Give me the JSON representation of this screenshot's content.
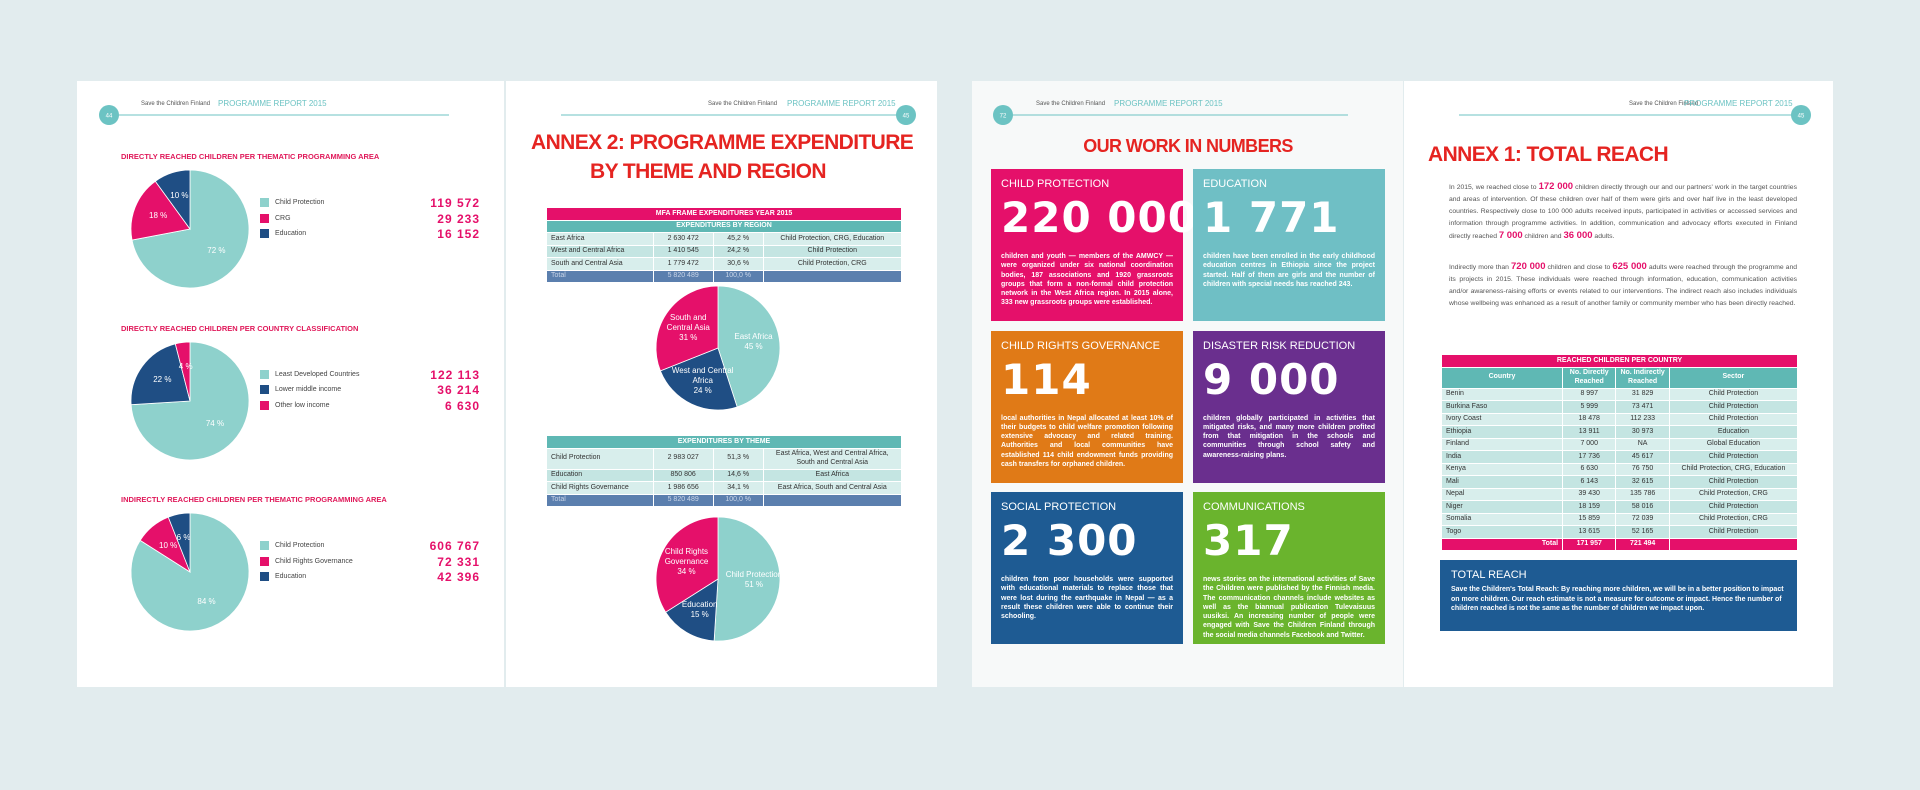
{
  "pages": [
    {
      "page_number": "44",
      "organization": "Save the Children Finland",
      "report": "PROGRAMME REPORT 2015",
      "charts": [
        {
          "title": "DIRECTLY REACHED CHILDREN PER THEMATIC PROGRAMMING AREA",
          "slices": [
            {
              "label": "Child Protection",
              "value": 72,
              "value_label": "72 %",
              "figure": "119 572",
              "color": "#8ed1cc"
            },
            {
              "label": "CRG",
              "value": 18,
              "value_label": "18 %",
              "figure": "29 233",
              "color": "#e5106a"
            },
            {
              "label": "Education",
              "value": 10,
              "value_label": "10 %",
              "figure": "16 152",
              "color": "#1f4e84"
            }
          ]
        },
        {
          "title": "DIRECTLY REACHED CHILDREN PER COUNTRY CLASSIFICATION",
          "slices": [
            {
              "label": "Least Developed Countries",
              "value": 74,
              "value_label": "74 %",
              "figure": "122 113",
              "color": "#8ed1cc"
            },
            {
              "label": "Lower middle income",
              "value": 22,
              "value_label": "22 %",
              "figure": "36 214",
              "color": "#1f4e84"
            },
            {
              "label": "Other low income",
              "value": 4,
              "value_label": "4 %",
              "figure": "6 630",
              "color": "#e5106a"
            }
          ]
        },
        {
          "title": "INDIRECTLY REACHED CHILDREN PER THEMATIC PROGRAMMING AREA",
          "slices": [
            {
              "label": "Child Protection",
              "value": 84,
              "value_label": "84 %",
              "figure": "606 767",
              "color": "#8ed1cc"
            },
            {
              "label": "Child Rights Governance",
              "value": 10,
              "value_label": "10 %",
              "figure": "72 331",
              "color": "#e5106a"
            },
            {
              "label": "Education",
              "value": 6,
              "value_label": "6 %",
              "figure": "42 396",
              "color": "#1f4e84"
            }
          ]
        }
      ]
    },
    {
      "page_number": "45",
      "organization": "Save the Children Finland",
      "report": "PROGRAMME REPORT 2015",
      "title_lines": [
        "ANNEX 2: PROGRAMME EXPENDITURE",
        "BY THEME AND REGION"
      ],
      "region_table": {
        "title": "MFA FRAME EXPENDITURES YEAR 2015",
        "subtitle": "EXPENDITURES BY REGION",
        "rows": [
          [
            "East Africa",
            "2 630 472",
            "45,2 %",
            "Child Protection, CRG, Education"
          ],
          [
            "West and Central Africa",
            "1 410 545",
            "24,2 %",
            "Child Protection"
          ],
          [
            "South and Central Asia",
            "1 779 472",
            "30,6 %",
            "Child Protection, CRG"
          ]
        ],
        "total": [
          "Total",
          "5 820 489",
          "100,0 %"
        ]
      },
      "region_pie": {
        "slices": [
          {
            "label": "East Africa",
            "value": 45,
            "value_label": "45 %",
            "color": "#8ed1cc"
          },
          {
            "label": "West and Central Africa",
            "value": 24,
            "value_label": "24 %",
            "color": "#1f4e84"
          },
          {
            "label": "South and Central Asia",
            "value": 31,
            "value_label": "31 %",
            "color": "#e5106a"
          }
        ]
      },
      "theme_table": {
        "subtitle": "EXPENDITURES BY THEME",
        "rows": [
          [
            "Child Protection",
            "2 983 027",
            "51,3 %",
            "East Africa, West and Central Africa, South and Central Asia"
          ],
          [
            "Education",
            "850 806",
            "14,6 %",
            "East Africa"
          ],
          [
            "Child Rights Governance",
            "1 986 656",
            "34,1 %",
            "East Africa, South and Central Asia"
          ]
        ],
        "total": [
          "Total",
          "5 820 489",
          "100,0 %"
        ]
      },
      "theme_pie": {
        "slices": [
          {
            "label": "Child Protection",
            "value": 51,
            "value_label": "51 %",
            "color": "#8ed1cc"
          },
          {
            "label": "Education",
            "value": 15,
            "value_label": "15 %",
            "color": "#1f4e84"
          },
          {
            "label": "Child Rights Governance",
            "value": 34,
            "value_label": "34 %",
            "color": "#e5106a"
          }
        ]
      }
    },
    {
      "page_number": "72",
      "organization": "Save the Children Finland",
      "report": "PROGRAMME REPORT 2015",
      "title": "OUR WORK IN NUMBERS",
      "tiles": [
        {
          "heading": "CHILD PROTECTION",
          "number": "220 000",
          "color": "#e5106a",
          "text": "children and youth — members of the AMWCY — were organized under six national coordination bodies, 187 associations and 1920 grassroots groups that form a non-formal child protection network in the West Africa region. In 2015 alone, 333 new grassroots groups were established."
        },
        {
          "heading": "EDUCATION",
          "number": "1 771",
          "color": "#6fbfc5",
          "text": "children have been enrolled in the early childhood education centres in Ethiopia since the project started. Half of them are girls and the number of children with special needs has reached 243."
        },
        {
          "heading": "CHILD RIGHTS GOVERNANCE",
          "number": "114",
          "color": "#e07a17",
          "text": "local authorities in Nepal allocated at least 10% of their budgets to child welfare promotion following extensive advocacy and related training. Authorities and local communities have established 114 child endowment funds providing cash transfers for orphaned children."
        },
        {
          "heading": "DISASTER RISK REDUCTION",
          "number": "9 000",
          "color": "#6a2f8e",
          "text": "children globally participated in activities that mitigated risks, and many more children profited from that mitigation in the schools and communities through school safety and awareness-raising plans."
        },
        {
          "heading": "SOCIAL PROTECTION",
          "number": "2 300",
          "color": "#1e5b93",
          "text": "children from poor households were supported with educational materials to replace those that were lost during the earthquake in Nepal — as a result these children were able to continue their schooling."
        },
        {
          "heading": "COMMUNICATIONS",
          "number": "317",
          "color": "#6ab42d",
          "text": "news stories on the international activities of Save the Children were published by the Finnish media. The communication channels include websites as well as the biannual publication Tulevaisuus uusiksi. An increasing number of people were engaged with Save the Children Finland through the social media channels Facebook and Twitter."
        }
      ]
    },
    {
      "page_number": "45",
      "organization": "Save the Children Finland",
      "report": "PROGRAMME REPORT 2015",
      "title": "ANNEX 1: TOTAL REACH",
      "paragraphs": [
        [
          "In 2015, we reached close to ",
          "172 000",
          " children directly through our and our partners' work in the target countries and areas of intervention. Of these children over half of them were girls and over half live in the least developed countries. Respectively close to 100 000 adults received inputs, participated in activities or accessed services and information through programme activities. In addition, communication and advocacy efforts executed in Finland directly reached ",
          "7 000",
          " children and ",
          "36 000",
          " adults."
        ],
        [
          "Indirectly more than ",
          "720 000",
          " children and close to ",
          "625 000",
          " adults were reached through the programme and its projects in 2015. These individuals were reached through information, education, communication activities and/or awareness-raising efforts or events related to our interventions. The indirect reach also includes individuals whose wellbeing was enhanced as a result of another family or community member who has been directly reached."
        ]
      ],
      "table": {
        "title": "REACHED CHILDREN PER COUNTRY",
        "columns": [
          "Country",
          "No. Directly Reached",
          "No. Indirectly Reached",
          "Sector"
        ],
        "rows": [
          [
            "Benin",
            "8 997",
            "31 829",
            "Child Protection"
          ],
          [
            "Burkina Faso",
            "5 999",
            "73 471",
            "Child Protection"
          ],
          [
            "Ivory Coast",
            "18 478",
            "112 233",
            "Child Protection"
          ],
          [
            "Ethiopia",
            "13 911",
            "30 973",
            "Education"
          ],
          [
            "Finland",
            "7 000",
            "NA",
            "Global Education"
          ],
          [
            "India",
            "17 736",
            "45 617",
            "Child Protection"
          ],
          [
            "Kenya",
            "6 630",
            "76 750",
            "Child Protection, CRG, Education"
          ],
          [
            "Mali",
            "6 143",
            "32 615",
            "Child Protection"
          ],
          [
            "Nepal",
            "39 430",
            "135 786",
            "Child Protection, CRG"
          ],
          [
            "Niger",
            "18 159",
            "58 016",
            "Child Protection"
          ],
          [
            "Somalia",
            "15 859",
            "72 039",
            "Child Protection, CRG"
          ],
          [
            "Togo",
            "13 615",
            "52 165",
            "Child Protection"
          ]
        ],
        "total": [
          "Total",
          "171 957",
          "721 494"
        ]
      },
      "box": {
        "heading": "TOTAL REACH",
        "text": "Save the Children's Total Reach: By reaching more children, we will be in a better position to impact on more children. Our reach estimate is not a measure for outcome or impact. Hence the number of children reached is not the same as the number of children we impact upon."
      }
    }
  ]
}
